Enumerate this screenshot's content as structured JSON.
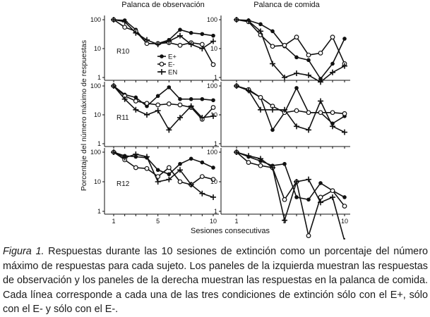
{
  "figure": {
    "column_titles": [
      "Palanca de observación",
      "Palanca de comida"
    ],
    "row_labels": [
      "R10",
      "R11",
      "R12"
    ],
    "xlabel": "Sesiones consecutivas",
    "ylabel": "Porcentaje del número máximo de respuestas",
    "legend": {
      "e_plus": "E+",
      "e_minus": "E-",
      "en": "EN"
    }
  },
  "caption": {
    "label": "Figura 1.",
    "text": " Respuestas durante las 10 sesiones de extinción como un porcentaje del número máximo de respuestas para cada sujeto. Los paneles de la izquierda muestran las respuestas de observación y los paneles de la derecha muestran las respuestas en la palanca de comida. Cada línea corresponde a cada una de las tres condiciones de extinción sólo con el E+, sólo con el E- y sólo con el E-."
  },
  "chart_data": [
    {
      "type": "line",
      "panel": "R10 - Palanca de observación",
      "x": [
        1,
        2,
        3,
        4,
        5,
        6,
        7,
        8,
        9,
        10
      ],
      "y_scale": "log",
      "ylim": [
        1,
        100
      ],
      "yticks": [
        1,
        10,
        100
      ],
      "xticks": [
        1,
        5,
        10
      ],
      "grid": false,
      "legend_position": "lower-left",
      "series": [
        {
          "name": "E+",
          "marker": "filled-circle",
          "values": [
            100,
            95,
            45,
            15,
            15,
            20,
            45,
            35,
            32,
            28
          ]
        },
        {
          "name": "E-",
          "marker": "open-circle",
          "values": [
            100,
            55,
            40,
            15,
            15,
            16,
            13,
            16,
            14,
            2.8
          ]
        },
        {
          "name": "EN",
          "marker": "plus",
          "values": [
            100,
            85,
            35,
            20,
            14,
            18,
            28,
            14,
            10,
            18
          ]
        }
      ]
    },
    {
      "type": "line",
      "panel": "R10 - Palanca de comida",
      "x": [
        1,
        2,
        3,
        4,
        5,
        6,
        7,
        8,
        9,
        10
      ],
      "y_scale": "log",
      "ylim": [
        1,
        100
      ],
      "yticks": [
        1,
        10,
        100
      ],
      "xticks": [
        1,
        5,
        10
      ],
      "grid": false,
      "series": [
        {
          "name": "E+",
          "values": [
            100,
            95,
            70,
            40,
            12,
            5,
            4,
            0.9,
            3,
            22
          ]
        },
        {
          "name": "E-",
          "values": [
            100,
            85,
            30,
            12,
            13,
            25,
            6,
            7,
            25,
            3
          ]
        },
        {
          "name": "EN",
          "values": [
            100,
            90,
            40,
            3,
            1,
            1.4,
            1.2,
            0.7,
            1.5,
            2.5
          ]
        }
      ]
    },
    {
      "type": "line",
      "panel": "R11 - Palanca de observación",
      "x": [
        1,
        2,
        3,
        4,
        5,
        6,
        7,
        8,
        9,
        10
      ],
      "y_scale": "log",
      "ylim": [
        1,
        100
      ],
      "yticks": [
        1,
        10,
        100
      ],
      "xticks": [
        1,
        5,
        10
      ],
      "grid": false,
      "series": [
        {
          "name": "E+",
          "values": [
            100,
            50,
            40,
            20,
            45,
            90,
            35,
            35,
            35,
            32
          ]
        },
        {
          "name": "E-",
          "values": [
            100,
            45,
            30,
            25,
            22,
            24,
            22,
            18,
            7,
            18
          ]
        },
        {
          "name": "EN",
          "values": [
            100,
            35,
            15,
            10,
            14,
            3,
            8,
            20,
            8,
            9
          ]
        }
      ]
    },
    {
      "type": "line",
      "panel": "R11 - Palanca de comida",
      "x": [
        1,
        2,
        3,
        4,
        5,
        6,
        7,
        8,
        9,
        10
      ],
      "y_scale": "log",
      "ylim": [
        1,
        100
      ],
      "yticks": [
        1,
        10,
        100
      ],
      "xticks": [
        1,
        5,
        10
      ],
      "grid": false,
      "series": [
        {
          "name": "E+",
          "values": [
            100,
            70,
            40,
            3,
            12,
            85,
            12,
            12,
            5,
            9
          ]
        },
        {
          "name": "E-",
          "values": [
            100,
            75,
            40,
            20,
            12,
            14,
            12,
            12,
            12,
            11
          ]
        },
        {
          "name": "EN",
          "values": [
            100,
            70,
            15,
            15,
            15,
            4,
            3,
            30,
            4,
            2.5
          ]
        }
      ]
    },
    {
      "type": "line",
      "panel": "R12 - Palanca de observación",
      "x": [
        1,
        2,
        3,
        4,
        5,
        6,
        7,
        8,
        9,
        10
      ],
      "y_scale": "log",
      "ylim": [
        1,
        100
      ],
      "yticks": [
        1,
        10,
        100
      ],
      "xticks": [
        1,
        5,
        10
      ],
      "grid": false,
      "series": [
        {
          "name": "E+",
          "values": [
            100,
            75,
            70,
            65,
            25,
            18,
            40,
            60,
            45,
            30
          ]
        },
        {
          "name": "E-",
          "values": [
            100,
            55,
            30,
            28,
            15,
            30,
            10,
            8,
            15,
            12
          ]
        },
        {
          "name": "EN",
          "values": [
            100,
            65,
            85,
            70,
            10,
            12,
            25,
            8,
            4,
            3
          ]
        }
      ]
    },
    {
      "type": "line",
      "panel": "R12 - Palanca de comida",
      "x": [
        1,
        2,
        3,
        4,
        5,
        6,
        7,
        8,
        9,
        10
      ],
      "y_scale": "log",
      "ylim": [
        1,
        100
      ],
      "yticks": [
        1,
        10,
        100
      ],
      "xticks": [
        1,
        5,
        10
      ],
      "grid": false,
      "series": [
        {
          "name": "E+",
          "values": [
            100,
            70,
            50,
            35,
            40,
            3,
            2.5,
            9,
            5,
            3
          ]
        },
        {
          "name": "E-",
          "values": [
            100,
            45,
            35,
            30,
            2.5,
            10,
            0.15,
            3,
            5,
            1.5
          ]
        },
        {
          "name": "EN",
          "values": [
            100,
            75,
            60,
            30,
            0.5,
            10,
            12,
            2,
            3,
            0.1
          ]
        }
      ]
    }
  ]
}
